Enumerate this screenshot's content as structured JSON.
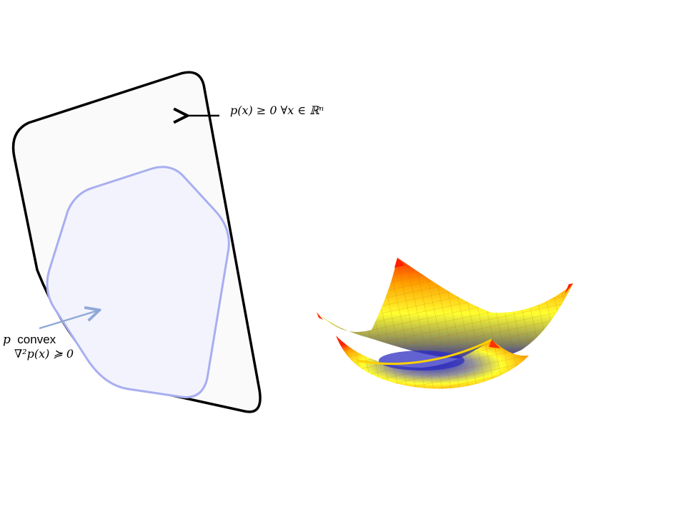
{
  "diagram": {
    "outer_region": {
      "label": "p(x) ≥ 0 ∀x ∈ ℝⁿ",
      "stroke": "#000000",
      "fill": "#fafafa"
    },
    "inner_region": {
      "label_line1_var": "p",
      "label_line1_word": "convex",
      "label_line2": "∇²p(x) ≽ 0",
      "stroke": "#a8aef0",
      "fill": "#f2f3fd"
    },
    "arrow_outer": {
      "color": "#000000"
    },
    "arrow_inner": {
      "color": "#8fa8d8"
    },
    "surface": {
      "description_icon": "paraboloid-surface-icon",
      "colors": [
        "#2020c0",
        "#ffff20",
        "#ffa000",
        "#ff2000"
      ]
    }
  }
}
